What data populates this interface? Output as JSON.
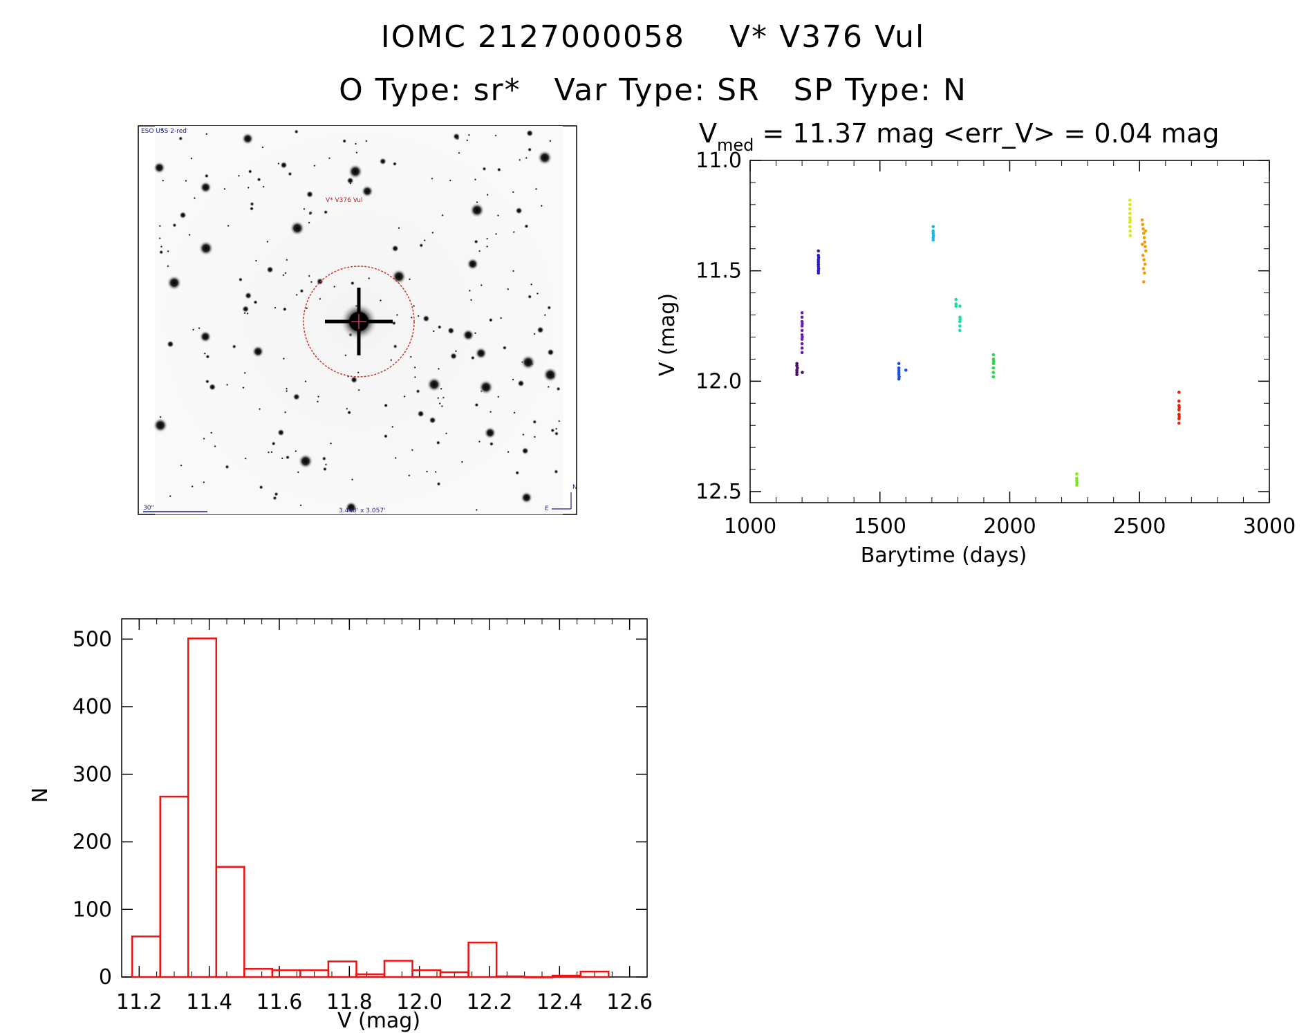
{
  "header": {
    "line1": "IOMC 2127000058    V* V376 Vul",
    "line2": "O Type: sr*   Var Type: SR   SP Type: N"
  },
  "sky_image": {
    "survey_label": "ESO USS 2-red",
    "target_label": "V* V376 Vul",
    "scale_label": "30\"",
    "size_label": "3.448' x 3.057'",
    "north_label": "N",
    "east_label": "E",
    "target_circle_color": "#c0392b"
  },
  "chart_data": [
    {
      "type": "scatter",
      "name": "light-curve",
      "title_prefix": "V",
      "title_subscript": "med",
      "title_rest": " = 11.37 mag <err_V> = 0.04 mag",
      "xlabel": "Barytime (days)",
      "ylabel": "V (mag)",
      "xlim": [
        1000,
        3000
      ],
      "ylim": [
        12.55,
        11.0
      ],
      "xticks": [
        "1000",
        "1500",
        "2000",
        "2500",
        "3000"
      ],
      "yticks": [
        "11.0",
        "11.5",
        "12.0",
        "12.5"
      ],
      "series": [
        {
          "name": "group-1",
          "color": "#4b0f6e",
          "x": [
            1180,
            1180,
            1180,
            1180,
            1180,
            1182,
            1201
          ],
          "y": [
            11.92,
            11.93,
            11.95,
            11.96,
            11.97,
            11.94,
            11.96
          ]
        },
        {
          "name": "group-2",
          "color": "#6a1fa8",
          "x": [
            1200,
            1200,
            1200,
            1200,
            1200,
            1200,
            1200,
            1200,
            1200,
            1200,
            1201,
            1201
          ],
          "y": [
            11.69,
            11.71,
            11.73,
            11.75,
            11.77,
            11.79,
            11.81,
            11.83,
            11.85,
            11.87,
            11.74,
            11.8
          ]
        },
        {
          "name": "group-3",
          "color": "#2a1fc0",
          "x": [
            1263,
            1263,
            1263,
            1263,
            1263,
            1263,
            1263,
            1263,
            1264,
            1264
          ],
          "y": [
            11.41,
            11.43,
            11.45,
            11.46,
            11.47,
            11.48,
            11.5,
            11.51,
            11.44,
            11.49
          ]
        },
        {
          "name": "group-4",
          "color": "#1a4fe0",
          "x": [
            1573,
            1573,
            1573,
            1573,
            1573,
            1573,
            1574,
            1600
          ],
          "y": [
            11.92,
            11.94,
            11.95,
            11.96,
            11.97,
            11.99,
            11.98,
            11.95
          ]
        },
        {
          "name": "group-5",
          "color": "#1ab8e0",
          "x": [
            1705,
            1705,
            1705,
            1705,
            1705,
            1706
          ],
          "y": [
            11.3,
            11.32,
            11.33,
            11.35,
            11.36,
            11.34
          ]
        },
        {
          "name": "group-6",
          "color": "#20d8a8",
          "x": [
            1793,
            1793,
            1793,
            1808,
            1808,
            1808,
            1808,
            1808,
            1809
          ],
          "y": [
            11.63,
            11.65,
            11.66,
            11.66,
            11.71,
            11.73,
            11.75,
            11.77,
            11.72
          ]
        },
        {
          "name": "group-7",
          "color": "#28d84a",
          "x": [
            1937,
            1937,
            1937,
            1937,
            1937,
            1937,
            1938
          ],
          "y": [
            11.88,
            11.9,
            11.92,
            11.94,
            11.96,
            11.98,
            11.91
          ]
        },
        {
          "name": "group-8",
          "color": "#7be81a",
          "x": [
            2258,
            2258,
            2258,
            2258,
            2259
          ],
          "y": [
            12.42,
            12.44,
            12.45,
            12.47,
            12.46
          ]
        },
        {
          "name": "group-9",
          "color": "#d4e81a",
          "x": [
            2463,
            2463,
            2463,
            2463,
            2463,
            2463,
            2463,
            2464,
            2464,
            2464
          ],
          "y": [
            11.18,
            11.2,
            11.22,
            11.24,
            11.26,
            11.28,
            11.3,
            11.32,
            11.34,
            11.27
          ]
        },
        {
          "name": "group-10",
          "color": "#f59a0a",
          "x": [
            2510,
            2512,
            2514,
            2516,
            2518,
            2520,
            2522,
            2524,
            2513,
            2517,
            2521,
            2515,
            2519,
            2511,
            2523,
            2516
          ],
          "y": [
            11.27,
            11.29,
            11.31,
            11.33,
            11.35,
            11.37,
            11.39,
            11.41,
            11.43,
            11.45,
            11.47,
            11.49,
            11.51,
            11.38,
            11.32,
            11.55
          ]
        },
        {
          "name": "group-11",
          "color": "#e8210a",
          "x": [
            2652,
            2652,
            2652,
            2652,
            2652,
            2652,
            2652,
            2653,
            2653
          ],
          "y": [
            12.05,
            12.09,
            12.11,
            12.13,
            12.15,
            12.17,
            12.19,
            12.12,
            12.16
          ]
        }
      ]
    },
    {
      "type": "bar",
      "name": "histogram",
      "xlabel": "V (mag)",
      "ylabel": "N",
      "xlim": [
        11.15,
        12.65
      ],
      "ylim": [
        0,
        530
      ],
      "xticks": [
        "11.2",
        "11.4",
        "11.6",
        "11.8",
        "12.0",
        "12.2",
        "12.4",
        "12.6"
      ],
      "yticks": [
        "0",
        "100",
        "200",
        "300",
        "400",
        "500"
      ],
      "bin_width": 0.08,
      "bin_starts": [
        11.18,
        11.26,
        11.34,
        11.42,
        11.5,
        11.58,
        11.66,
        11.74,
        11.82,
        11.9,
        11.98,
        12.06,
        12.14,
        12.22,
        12.3,
        12.38,
        12.46
      ],
      "values": [
        60,
        267,
        501,
        163,
        12,
        10,
        10,
        23,
        4,
        24,
        10,
        7,
        51,
        1,
        0,
        2,
        8
      ],
      "bar_color": "#ee1111"
    }
  ]
}
